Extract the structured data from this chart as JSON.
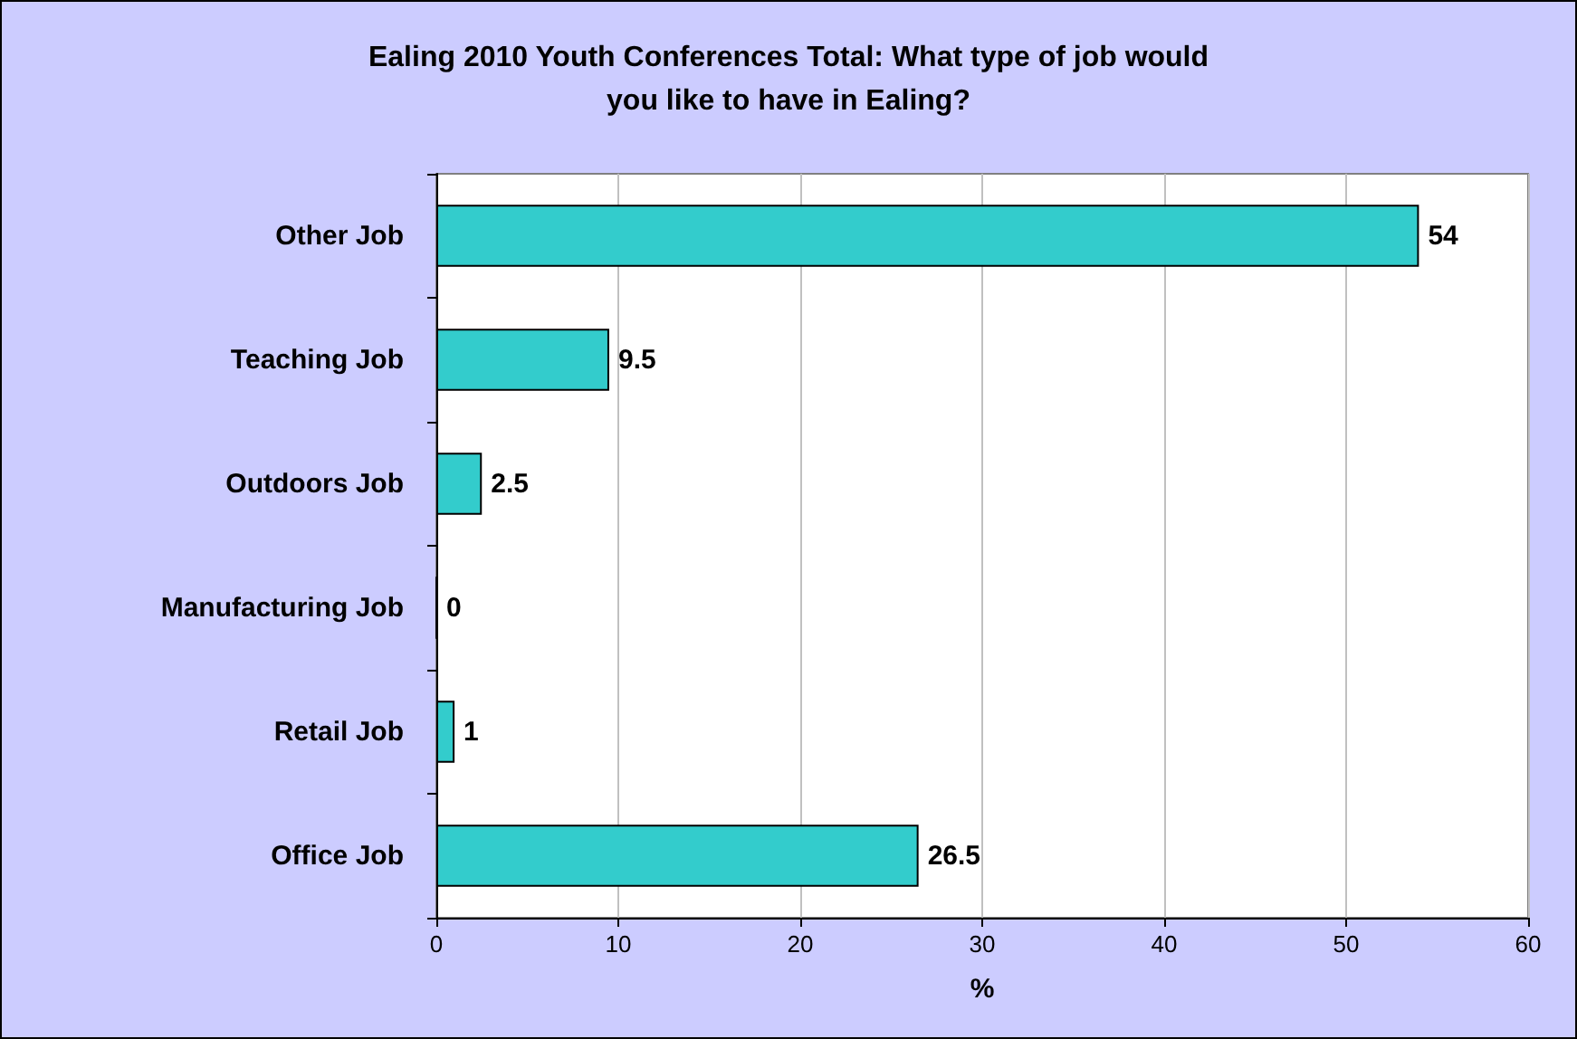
{
  "chart_data": {
    "type": "bar",
    "orientation": "horizontal",
    "title": "Ealing 2010 Youth Conferences Total: What type of job would\nyou like to have in Ealing?",
    "xlabel": "%",
    "categories": [
      "Other Job",
      "Teaching Job",
      "Outdoors Job",
      "Manufacturing Job",
      "Retail Job",
      "Office Job"
    ],
    "values": [
      54,
      9.5,
      2.5,
      0,
      1,
      26.5
    ],
    "color": "#33cccc",
    "xlim": [
      0,
      60
    ],
    "xticks": [
      0,
      10,
      20,
      30,
      40,
      50,
      60
    ],
    "grid": "x",
    "data_labels": true
  }
}
